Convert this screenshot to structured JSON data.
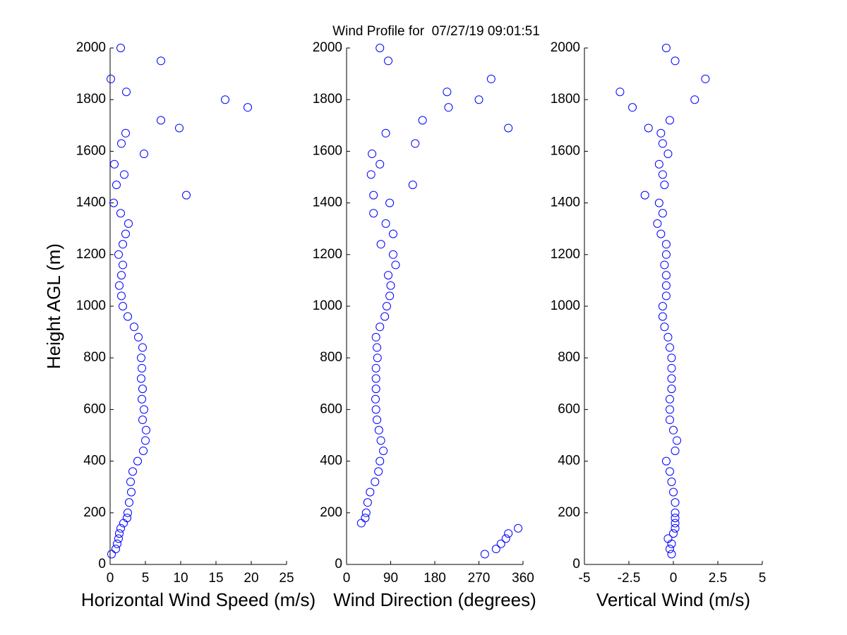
{
  "chart_data": [
    {
      "type": "scatter",
      "title": "Wind Profile for  07/27/19 09:01:51",
      "xlabel": "Horizontal Wind Speed (m/s)",
      "ylabel": "Height AGL (m)",
      "color": "#0000ff",
      "xlim": [
        0,
        25
      ],
      "xticks": [
        0,
        5,
        10,
        15,
        20,
        25
      ],
      "ylim": [
        0,
        2000
      ],
      "yticks": [
        0,
        200,
        400,
        600,
        800,
        1000,
        1200,
        1400,
        1600,
        1800,
        2000
      ],
      "y": [
        40,
        60,
        80,
        100,
        120,
        140,
        160,
        180,
        200,
        240,
        280,
        320,
        360,
        400,
        440,
        480,
        520,
        560,
        600,
        640,
        680,
        720,
        760,
        800,
        840,
        880,
        920,
        960,
        1000,
        1040,
        1080,
        1120,
        1160,
        1200,
        1240,
        1280,
        1320,
        1360,
        1400,
        1430,
        1470,
        1510,
        1550,
        1590,
        1630,
        1670,
        1690,
        1720,
        1770,
        1800,
        1830,
        1880,
        1950,
        2000
      ],
      "x": [
        0.2,
        0.8,
        1.0,
        1.2,
        1.3,
        1.5,
        1.9,
        2.4,
        2.5,
        2.7,
        3.0,
        2.9,
        3.2,
        3.9,
        4.7,
        5.0,
        5.1,
        4.6,
        4.8,
        4.5,
        4.6,
        4.4,
        4.5,
        4.4,
        4.6,
        4.0,
        3.4,
        2.5,
        1.8,
        1.6,
        1.3,
        1.6,
        1.8,
        1.2,
        1.8,
        2.2,
        2.6,
        1.5,
        0.5,
        10.8,
        0.9,
        2.0,
        0.6,
        4.8,
        1.6,
        2.2,
        9.8,
        7.2,
        19.5,
        16.3,
        2.3,
        0.1,
        7.2,
        1.5
      ]
    },
    {
      "type": "scatter",
      "xlabel": "Wind Direction (degrees)",
      "color": "#0000ff",
      "xlim": [
        0,
        360
      ],
      "xticks": [
        0,
        90,
        180,
        270,
        360
      ],
      "ylim": [
        0,
        2000
      ],
      "yticks": [
        0,
        200,
        400,
        600,
        800,
        1000,
        1200,
        1400,
        1600,
        1800,
        2000
      ],
      "y": [
        40,
        60,
        80,
        100,
        120,
        140,
        160,
        180,
        200,
        240,
        280,
        320,
        360,
        400,
        440,
        480,
        520,
        560,
        600,
        640,
        680,
        720,
        760,
        800,
        840,
        880,
        920,
        960,
        1000,
        1040,
        1080,
        1120,
        1160,
        1200,
        1240,
        1280,
        1320,
        1360,
        1400,
        1430,
        1470,
        1510,
        1550,
        1590,
        1630,
        1670,
        1690,
        1720,
        1770,
        1800,
        1830,
        1880,
        1950,
        2000
      ],
      "x": [
        282,
        305,
        315,
        325,
        330,
        350,
        30,
        38,
        40,
        43,
        48,
        58,
        65,
        68,
        75,
        70,
        66,
        62,
        60,
        59,
        60,
        60,
        60,
        63,
        62,
        60,
        68,
        78,
        82,
        88,
        90,
        85,
        100,
        95,
        70,
        95,
        80,
        55,
        88,
        55,
        135,
        50,
        68,
        52,
        140,
        80,
        330,
        155,
        208,
        270,
        205,
        295,
        85,
        68
      ]
    },
    {
      "type": "scatter",
      "xlabel": "Vertical Wind (m/s)",
      "color": "#0000ff",
      "xlim": [
        -5,
        5
      ],
      "xticks": [
        -5,
        -2.5,
        0,
        2.5,
        5
      ],
      "ylim": [
        0,
        2000
      ],
      "yticks": [
        0,
        200,
        400,
        600,
        800,
        1000,
        1200,
        1400,
        1600,
        1800,
        2000
      ],
      "y": [
        40,
        60,
        80,
        100,
        120,
        140,
        160,
        180,
        200,
        240,
        280,
        320,
        360,
        400,
        440,
        480,
        520,
        560,
        600,
        640,
        680,
        720,
        760,
        800,
        840,
        880,
        920,
        960,
        1000,
        1040,
        1080,
        1120,
        1160,
        1200,
        1240,
        1280,
        1320,
        1360,
        1400,
        1430,
        1470,
        1510,
        1550,
        1590,
        1630,
        1670,
        1690,
        1720,
        1770,
        1800,
        1830,
        1880,
        1950,
        2000
      ],
      "x": [
        -0.1,
        -0.2,
        -0.1,
        -0.3,
        0,
        0.1,
        0.1,
        0.1,
        0.1,
        0.1,
        0,
        -0.1,
        -0.2,
        -0.4,
        0.1,
        0.2,
        0,
        -0.2,
        -0.2,
        -0.2,
        -0.1,
        -0.1,
        -0.1,
        -0.1,
        -0.2,
        -0.3,
        -0.5,
        -0.6,
        -0.6,
        -0.4,
        -0.4,
        -0.4,
        -0.5,
        -0.4,
        -0.4,
        -0.7,
        -0.9,
        -0.6,
        -0.8,
        -1.6,
        -0.5,
        -0.6,
        -0.8,
        -0.3,
        -0.6,
        -0.7,
        -1.4,
        -0.2,
        -2.3,
        1.2,
        -3.0,
        1.8,
        0.1,
        -0.4
      ]
    }
  ]
}
